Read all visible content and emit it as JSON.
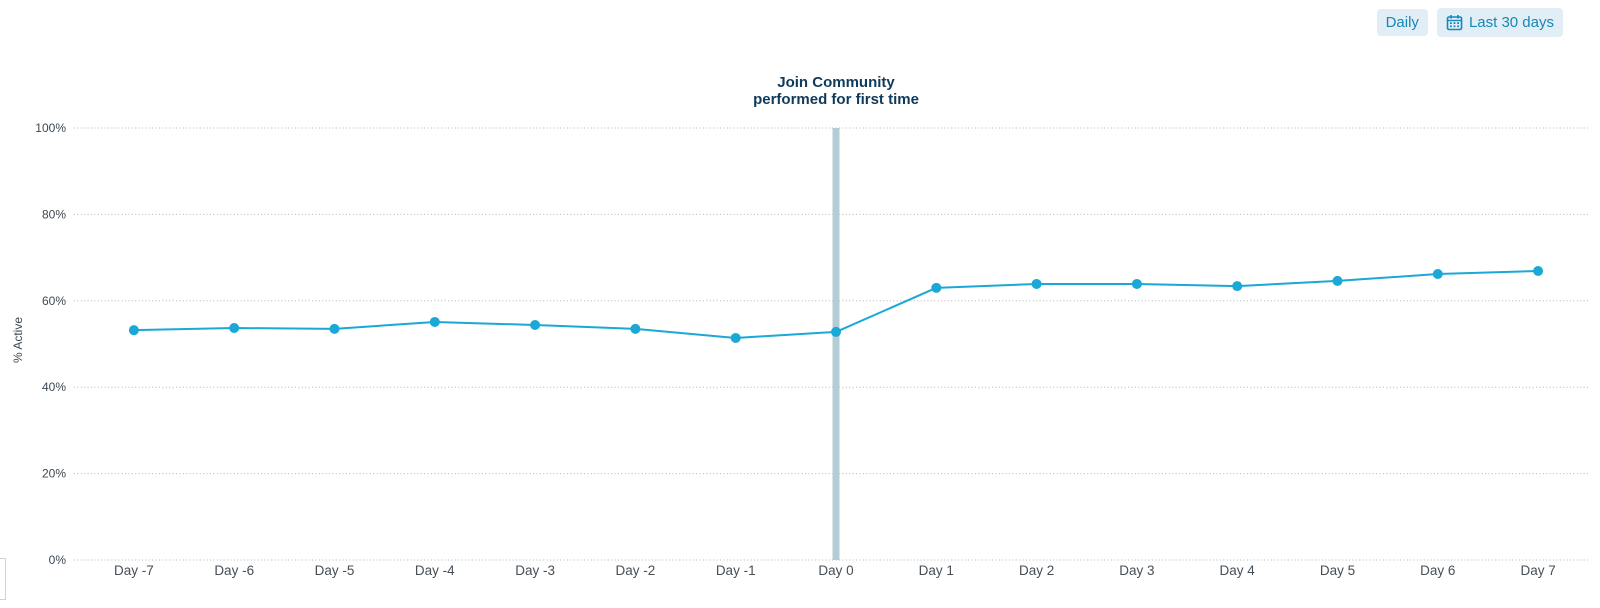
{
  "controls": {
    "granularity_label": "Daily",
    "date_range_label": "Last 30 days"
  },
  "chart_data": {
    "type": "line",
    "title": "Join Community performed for first time",
    "title_line1": "Join Community",
    "title_line2": "performed for first time",
    "ylabel": "% Active",
    "xlabel": "",
    "categories": [
      "Day -7",
      "Day -6",
      "Day -5",
      "Day -4",
      "Day -3",
      "Day -2",
      "Day -1",
      "Day 0",
      "Day 1",
      "Day 2",
      "Day 3",
      "Day 4",
      "Day 5",
      "Day 6",
      "Day 7"
    ],
    "series": [
      {
        "name": "% Active",
        "values": [
          53.2,
          53.7,
          53.5,
          55.1,
          54.4,
          53.5,
          51.4,
          52.8,
          63.0,
          63.9,
          63.9,
          63.4,
          64.6,
          66.2,
          66.9
        ]
      }
    ],
    "ylim": [
      0,
      100
    ],
    "yticks": [
      0,
      20,
      40,
      60,
      80,
      100
    ],
    "ytick_labels": [
      "0%",
      "20%",
      "40%",
      "60%",
      "80%",
      "100%"
    ],
    "grid": "horizontal-dotted",
    "legend": "none",
    "event_marker": {
      "category": "Day 0",
      "label": "Join Community performed for first time"
    }
  },
  "colors": {
    "line": "#1aa8d6",
    "dot": "#1aa8d6",
    "event_band": "#b3ccd6",
    "grid": "#b4b4b4",
    "axis_text": "#3d4852",
    "x_label_text": "#474f56",
    "title_text": "#0e3a5c",
    "button_bg": "#e1eef5",
    "button_text": "#1787b8"
  }
}
